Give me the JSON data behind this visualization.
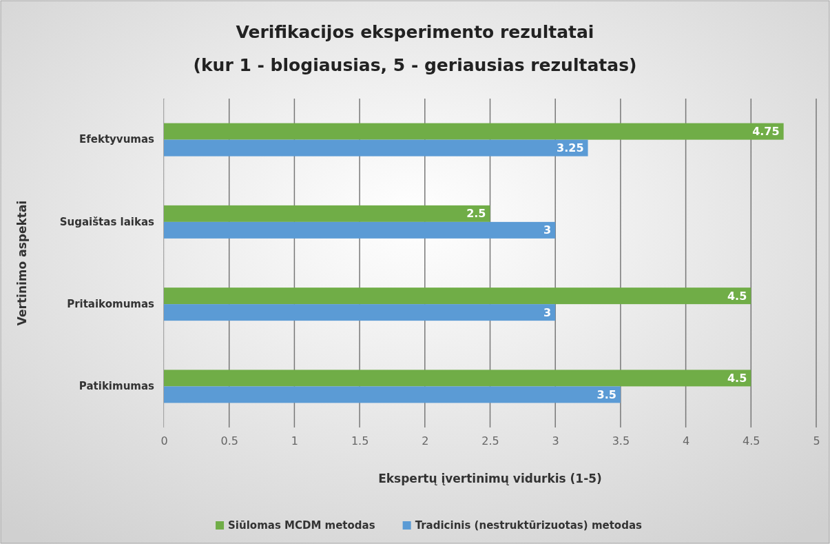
{
  "chart_data": {
    "type": "bar",
    "orientation": "horizontal",
    "title": "Verifikacijos eksperimento rezultatai\n(kur 1 - blogiausias, 5 - geriausias rezultatas)",
    "xlabel": "Ekspertų įvertinimų vidurkis (1-5)",
    "ylabel": "Vertinimo aspektai",
    "categories": [
      "Efektyvumas",
      "Sugaištas laikas",
      "Pritaikomumas",
      "Patikimumas"
    ],
    "series": [
      {
        "name": "Siūlomas MCDM metodas",
        "color": "#70ad47",
        "values": [
          4.75,
          2.5,
          4.5,
          4.5
        ]
      },
      {
        "name": "Tradicinis (nestruktūrizuotas) metodas",
        "color": "#5b9bd5",
        "values": [
          3.25,
          3,
          3,
          3.5
        ]
      }
    ],
    "xlim": [
      0,
      5
    ],
    "xticks": [
      0,
      0.5,
      1,
      1.5,
      2,
      2.5,
      3,
      3.5,
      4,
      4.5,
      5
    ],
    "grid": "x",
    "legend": "bottom",
    "data_labels": true
  }
}
